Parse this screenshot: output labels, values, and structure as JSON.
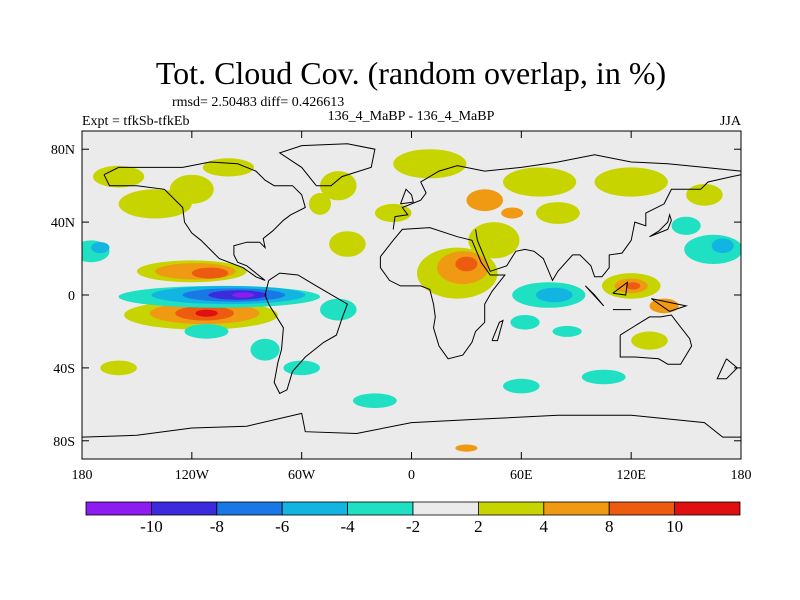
{
  "colors": {
    "palette": [
      "#8c1cf0",
      "#3c2bdc",
      "#1a78e6",
      "#12b4e2",
      "#20e0c4",
      "#ebebeb",
      "#c8d400",
      "#ef9a12",
      "#ec5b10",
      "#e01010"
    ]
  },
  "chart_data": {
    "type": "heatmap",
    "title": "Tot. Cloud Cov. (random overlap, in %)",
    "stats_line": "rmsd= 2.50483 diff= 0.426613",
    "left_label": "Expt = tfkSb-tfkEb",
    "center_label": "136_4_MaBP - 136_4_MaBP",
    "right_label": "JJA",
    "x_ticks": [
      "180",
      "120W",
      "60W",
      "0",
      "60E",
      "120E",
      "180"
    ],
    "y_ticks": [
      "80N",
      "40N",
      "0",
      "40S",
      "80S"
    ],
    "x_range": [
      -180,
      180
    ],
    "y_range": [
      -90,
      90
    ],
    "x_tick_values": [
      -180,
      -120,
      -60,
      0,
      60,
      120,
      180
    ],
    "y_tick_values": [
      80,
      40,
      0,
      -40,
      -80
    ],
    "colorbar": {
      "levels": [
        -10,
        -8,
        -6,
        -4,
        -2,
        2,
        4,
        8,
        10
      ],
      "labels": [
        "-10",
        "-8",
        "-6",
        "-4",
        "-2",
        "2",
        "4",
        "8",
        "10"
      ]
    },
    "features": [
      {
        "name": "E Pacific ITCZ negative core",
        "lon": -95,
        "lat": 0,
        "min_value": -10
      },
      {
        "name": "SE Pacific positive maximum",
        "lon": -113,
        "lat": -10,
        "max_value": 10
      },
      {
        "name": "NE Pacific positive band",
        "lon": -120,
        "lat": 13,
        "max_value": 8
      },
      {
        "name": "Central Africa positive",
        "lon": 28,
        "lat": 15,
        "max_value": 8
      },
      {
        "name": "Maritime Continent positive",
        "lon": 120,
        "lat": 5,
        "max_value": 8
      },
      {
        "name": "Indian Ocean negative",
        "lon": 75,
        "lat": 0,
        "min_value": -6
      }
    ]
  }
}
